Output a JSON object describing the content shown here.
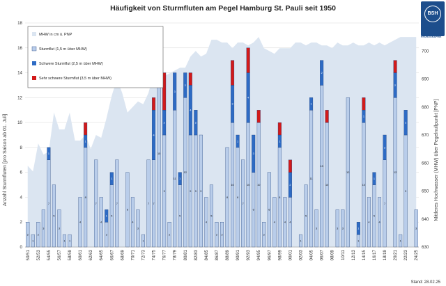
{
  "chart_data": {
    "type": "bar",
    "title": "Häufigkeit von Sturmfluten am Pegel Hamburg St. Pauli seit 1950",
    "ylabel": "Anzahl Sturmfluten [pro Saison ab 01. Juli]",
    "y2label": "Mittleres Hochwasser (MHW) über Pegelnullpunkt [PNP]",
    "ylim": [
      0,
      18
    ],
    "y2lim": [
      630,
      710
    ],
    "yticks": [
      "0",
      "2",
      "4",
      "6",
      "8",
      "10",
      "12",
      "14",
      "16",
      "18"
    ],
    "y2ticks": [
      "630",
      "640",
      "650",
      "660",
      "670",
      "680",
      "690",
      "700",
      "710"
    ],
    "xtick_labels": [
      "50/51",
      "52/53",
      "54/55",
      "56/57",
      "58/59",
      "60/61",
      "62/63",
      "64/65",
      "66/67",
      "68/69",
      "70/71",
      "72/73",
      "74/75",
      "76/77",
      "78/79",
      "80/81",
      "82/83",
      "84/85",
      "86/87",
      "88/89",
      "90/91",
      "92/93",
      "94/95",
      "96/97",
      "98/99",
      "00/01",
      "02/03",
      "04/05",
      "06/07",
      "08/09",
      "10/11",
      "12/13",
      "14/15",
      "16/17",
      "18/19",
      "20/21",
      "22/23",
      "24/25"
    ],
    "categories": [
      "50/51",
      "51/52",
      "52/53",
      "53/54",
      "54/55",
      "55/56",
      "56/57",
      "57/58",
      "58/59",
      "59/60",
      "60/61",
      "61/62",
      "62/63",
      "63/64",
      "64/65",
      "65/66",
      "66/67",
      "67/68",
      "68/69",
      "69/70",
      "70/71",
      "71/72",
      "72/73",
      "73/74",
      "74/75",
      "75/76",
      "76/77",
      "77/78",
      "78/79",
      "79/80",
      "80/81",
      "81/82",
      "82/83",
      "83/84",
      "84/85",
      "85/86",
      "86/87",
      "87/88",
      "88/89",
      "89/90",
      "90/91",
      "91/92",
      "92/93",
      "93/94",
      "94/95",
      "95/96",
      "96/97",
      "97/98",
      "98/99",
      "99/00",
      "00/01",
      "01/02",
      "02/03",
      "03/04",
      "04/05",
      "05/06",
      "06/07",
      "07/08",
      "08/09",
      "09/10",
      "10/11",
      "11/12",
      "12/13",
      "13/14",
      "14/15",
      "15/16",
      "16/17",
      "17/18",
      "18/19",
      "19/20",
      "20/21",
      "21/22",
      "22/23",
      "23/24",
      "24/25"
    ],
    "series": [
      {
        "name": "Sturmflut (1,5 m über MHW)",
        "color": "#b9cdea",
        "values": [
          2,
          1,
          2,
          3,
          7,
          5,
          3,
          1,
          1,
          0,
          4,
          8,
          0,
          7,
          4,
          2,
          5,
          7,
          0,
          6,
          4,
          3,
          1,
          7,
          7,
          15,
          9,
          2,
          11,
          5,
          12,
          9,
          9,
          9,
          4,
          5,
          2,
          2,
          8,
          10,
          8,
          7,
          10,
          6,
          10,
          2,
          6,
          4,
          8,
          4,
          4,
          0,
          1,
          5,
          11,
          3,
          13,
          10,
          0,
          3,
          3,
          12,
          0,
          1,
          10,
          4,
          5,
          4,
          7,
          0,
          12,
          1,
          9,
          0,
          3
        ]
      },
      {
        "name": "Schwere Sturmflut (2,5 m über MHW)",
        "color": "#2e6bc4",
        "values": [
          0,
          0,
          0,
          0,
          1,
          0,
          0,
          0,
          0,
          0,
          0,
          1,
          0,
          0,
          0,
          1,
          1,
          0,
          0,
          0,
          0,
          0,
          0,
          0,
          4,
          0,
          2,
          0,
          3,
          1,
          2,
          4,
          2,
          0,
          0,
          0,
          0,
          0,
          0,
          3,
          1,
          0,
          4,
          3,
          0,
          0,
          0,
          0,
          1,
          0,
          2,
          0,
          0,
          0,
          1,
          0,
          2,
          0,
          0,
          0,
          0,
          0,
          0,
          1,
          1,
          0,
          1,
          0,
          2,
          0,
          2,
          0,
          2,
          0,
          0
        ]
      },
      {
        "name": "Sehr schwere Sturmflut (3,5 m über MHW)",
        "color": "#d21a1a",
        "values": [
          0,
          0,
          0,
          0,
          0,
          0,
          0,
          0,
          0,
          0,
          0,
          1,
          0,
          0,
          0,
          0,
          0,
          0,
          0,
          0,
          0,
          0,
          0,
          0,
          1,
          0,
          3,
          0,
          0,
          0,
          0,
          1,
          0,
          0,
          0,
          0,
          0,
          0,
          0,
          2,
          0,
          0,
          2,
          0,
          1,
          0,
          0,
          0,
          1,
          0,
          1,
          0,
          0,
          0,
          0,
          0,
          0,
          1,
          0,
          0,
          0,
          0,
          0,
          0,
          1,
          0,
          0,
          0,
          0,
          0,
          1,
          0,
          0,
          0,
          0
        ]
      }
    ],
    "mhw_series": {
      "name": "MHW in cm ü. PNP",
      "color": "#dbe5f1",
      "values": [
        659,
        657,
        667,
        663,
        664,
        678,
        672,
        672,
        678,
        668,
        668,
        670,
        665,
        670,
        669,
        676,
        684,
        690,
        685,
        678,
        680,
        682,
        681,
        685,
        692,
        690,
        691,
        692,
        693,
        694,
        694,
        698,
        700,
        698,
        699,
        704,
        704,
        703,
        703,
        701,
        703,
        703,
        702,
        703,
        705,
        701,
        700,
        699,
        701,
        701,
        701,
        703,
        703,
        702,
        703,
        703,
        702,
        702,
        701,
        703,
        702,
        702,
        703,
        702,
        702,
        703,
        702,
        703,
        702,
        703,
        704,
        705,
        705,
        705,
        705
      ]
    },
    "legend": [
      "MHW in cm ü. PNP",
      "Sturmflut (1,5 m über MHW)",
      "Schwere Sturmflut (2,5 m über MHW)",
      "Sehr schwere Sturmflut (3,5 m über MHW)"
    ],
    "legend_position": "top-left",
    "grid": true
  },
  "logo": {
    "abbr": "BSH",
    "label": "BUNDESAMT FÜR SEESCHIFFFAHRT UND HYDROGRAPHIE"
  },
  "stand": "Stand: 28.02.25"
}
